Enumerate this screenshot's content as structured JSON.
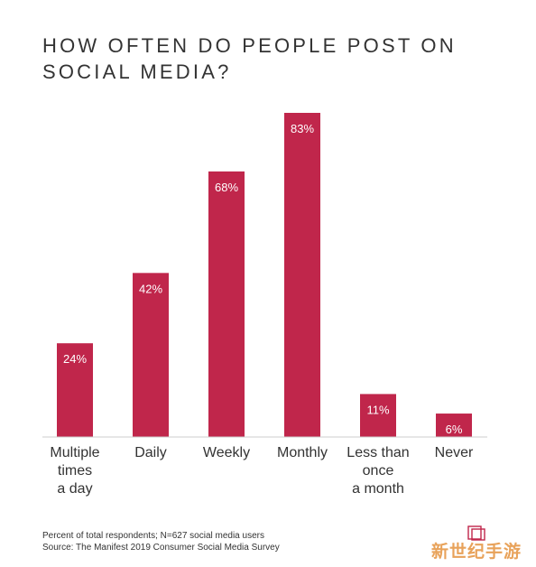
{
  "title_lines": [
    "HOW OFTEN DO PEOPLE POST ON",
    "SOCIAL MEDIA?"
  ],
  "chart_data": {
    "type": "bar",
    "title": "HOW OFTEN DO PEOPLE POST ON SOCIAL MEDIA?",
    "categories": [
      [
        "Multiple",
        "times",
        "a day"
      ],
      [
        "Daily"
      ],
      [
        "Weekly"
      ],
      [
        "Monthly"
      ],
      [
        "Less than",
        "once",
        "a month"
      ],
      [
        "Never"
      ]
    ],
    "values": [
      24,
      42,
      68,
      83,
      11,
      6
    ],
    "value_labels": [
      "24%",
      "42%",
      "68%",
      "83%",
      "11%",
      "6%"
    ],
    "ylim": [
      0,
      83
    ],
    "grid": false,
    "bar_color": "#c0264b"
  },
  "footnote": {
    "line1": "Percent of total respondents; N=627 social media users",
    "line2": "Source: The Manifest 2019 Consumer Social Media Survey"
  },
  "watermark": "新世纪手游",
  "colors": {
    "bar": "#c0264b",
    "text": "#333333",
    "axis": "#cccccc",
    "logo": "#c0264b"
  }
}
